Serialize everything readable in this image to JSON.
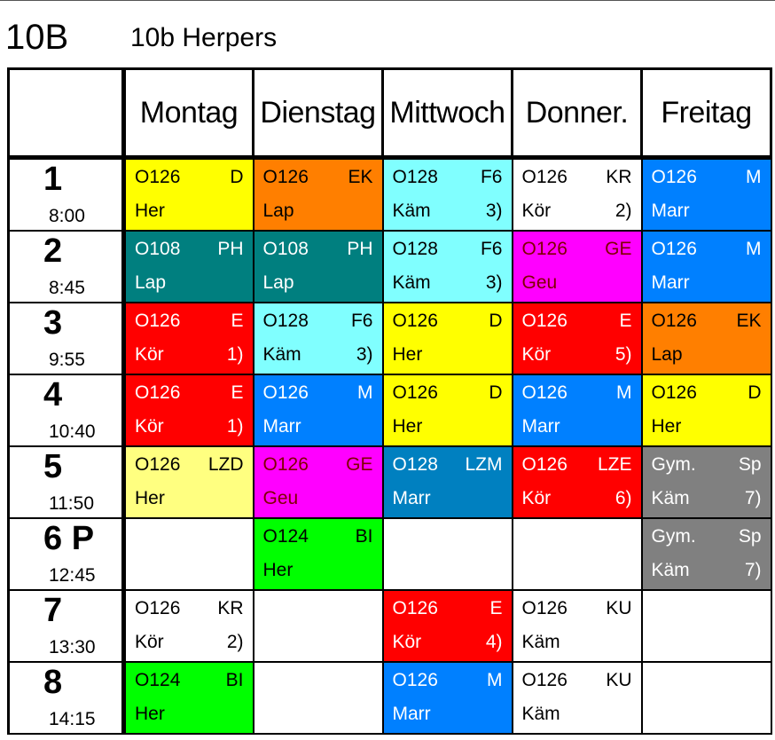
{
  "class_id": "10B",
  "class_name": "10b Herpers",
  "corner": "",
  "days": [
    "Montag",
    "Dienstag",
    "Mittwoch",
    "Donner.",
    "Freitag"
  ],
  "colors": {
    "yellow": "#ffff00",
    "orange": "#ff7f00",
    "cyan": "#80ffff",
    "blue": "#0080ff",
    "teal": "#007f7f",
    "magenta": "#ff00ff",
    "red": "#ff0000",
    "lightyellow": "#ffff80",
    "steelblue": "#0080c0",
    "gray": "#808080",
    "green": "#00ff00",
    "white": "#ffffff"
  },
  "periods": [
    {
      "num": "1",
      "time": "8:00",
      "cells": [
        {
          "room": "O126",
          "subject": "D",
          "teacher": "Her",
          "note": "",
          "color": "#ffff00",
          "text": "#000000"
        },
        {
          "room": "O126",
          "subject": "EK",
          "teacher": "Lap",
          "note": "",
          "color": "#ff7f00",
          "text": "#000000"
        },
        {
          "room": "O128",
          "subject": "F6",
          "teacher": "Käm",
          "note": "3)",
          "color": "#80ffff",
          "text": "#000000"
        },
        {
          "room": "O126",
          "subject": "KR",
          "teacher": "Kör",
          "note": "2)",
          "color": "#ffffff",
          "text": "#000000"
        },
        {
          "room": "O126",
          "subject": "M",
          "teacher": "Marr",
          "note": "",
          "color": "#0080ff",
          "text": "#ffffff"
        }
      ]
    },
    {
      "num": "2",
      "time": "8:45",
      "cells": [
        {
          "room": "O108",
          "subject": "PH",
          "teacher": "Lap",
          "note": "",
          "color": "#007f7f",
          "text": "#ffffff"
        },
        {
          "room": "O108",
          "subject": "PH",
          "teacher": "Lap",
          "note": "",
          "color": "#007f7f",
          "text": "#ffffff"
        },
        {
          "room": "O128",
          "subject": "F6",
          "teacher": "Käm",
          "note": "3)",
          "color": "#80ffff",
          "text": "#000000"
        },
        {
          "room": "O126",
          "subject": "GE",
          "teacher": "Geu",
          "note": "",
          "color": "#ff00ff",
          "text": "#7f0000"
        },
        {
          "room": "O126",
          "subject": "M",
          "teacher": "Marr",
          "note": "",
          "color": "#0080ff",
          "text": "#ffffff"
        }
      ]
    },
    {
      "num": "3",
      "time": "9:55",
      "cells": [
        {
          "room": "O126",
          "subject": "E",
          "teacher": "Kör",
          "note": "1)",
          "color": "#ff0000",
          "text": "#ffffff"
        },
        {
          "room": "O128",
          "subject": "F6",
          "teacher": "Käm",
          "note": "3)",
          "color": "#80ffff",
          "text": "#000000"
        },
        {
          "room": "O126",
          "subject": "D",
          "teacher": "Her",
          "note": "",
          "color": "#ffff00",
          "text": "#000000"
        },
        {
          "room": "O126",
          "subject": "E",
          "teacher": "Kör",
          "note": "5)",
          "color": "#ff0000",
          "text": "#ffffff"
        },
        {
          "room": "O126",
          "subject": "EK",
          "teacher": "Lap",
          "note": "",
          "color": "#ff7f00",
          "text": "#000000"
        }
      ]
    },
    {
      "num": "4",
      "time": "10:40",
      "cells": [
        {
          "room": "O126",
          "subject": "E",
          "teacher": "Kör",
          "note": "1)",
          "color": "#ff0000",
          "text": "#ffffff"
        },
        {
          "room": "O126",
          "subject": "M",
          "teacher": "Marr",
          "note": "",
          "color": "#0080ff",
          "text": "#ffffff"
        },
        {
          "room": "O126",
          "subject": "D",
          "teacher": "Her",
          "note": "",
          "color": "#ffff00",
          "text": "#000000"
        },
        {
          "room": "O126",
          "subject": "M",
          "teacher": "Marr",
          "note": "",
          "color": "#0080ff",
          "text": "#ffffff"
        },
        {
          "room": "O126",
          "subject": "D",
          "teacher": "Her",
          "note": "",
          "color": "#ffff00",
          "text": "#000000"
        }
      ]
    },
    {
      "num": "5",
      "time": "11:50",
      "cells": [
        {
          "room": "O126",
          "subject": "LZD",
          "teacher": "Her",
          "note": "",
          "color": "#ffff80",
          "text": "#000000"
        },
        {
          "room": "O126",
          "subject": "GE",
          "teacher": "Geu",
          "note": "",
          "color": "#ff00ff",
          "text": "#7f0000"
        },
        {
          "room": "O128",
          "subject": "LZM",
          "teacher": "Marr",
          "note": "",
          "color": "#0080c0",
          "text": "#ffffff"
        },
        {
          "room": "O126",
          "subject": "LZE",
          "teacher": "Kör",
          "note": "6)",
          "color": "#ff0000",
          "text": "#ffffff"
        },
        {
          "room": "Gym.",
          "subject": "Sp",
          "teacher": "Käm",
          "note": "7)",
          "color": "#808080",
          "text": "#ffffff"
        }
      ]
    },
    {
      "num": "6 P",
      "time": "12:45",
      "cells": [
        {
          "room": "",
          "subject": "",
          "teacher": "",
          "note": "",
          "color": "#ffffff",
          "text": "#000000"
        },
        {
          "room": "O124",
          "subject": "BI",
          "teacher": "Her",
          "note": "",
          "color": "#00ff00",
          "text": "#000000"
        },
        {
          "room": "",
          "subject": "",
          "teacher": "",
          "note": "",
          "color": "#ffffff",
          "text": "#000000"
        },
        {
          "room": "",
          "subject": "",
          "teacher": "",
          "note": "",
          "color": "#ffffff",
          "text": "#000000"
        },
        {
          "room": "Gym.",
          "subject": "Sp",
          "teacher": "Käm",
          "note": "7)",
          "color": "#808080",
          "text": "#ffffff"
        }
      ]
    },
    {
      "num": "7",
      "time": "13:30",
      "cells": [
        {
          "room": "O126",
          "subject": "KR",
          "teacher": "Kör",
          "note": "2)",
          "color": "#ffffff",
          "text": "#000000"
        },
        {
          "room": "",
          "subject": "",
          "teacher": "",
          "note": "",
          "color": "#ffffff",
          "text": "#000000"
        },
        {
          "room": "O126",
          "subject": "E",
          "teacher": "Kör",
          "note": "4)",
          "color": "#ff0000",
          "text": "#ffffff"
        },
        {
          "room": "O126",
          "subject": "KU",
          "teacher": "Käm",
          "note": "",
          "color": "#ffffff",
          "text": "#000000"
        },
        {
          "room": "",
          "subject": "",
          "teacher": "",
          "note": "",
          "color": "#ffffff",
          "text": "#000000"
        }
      ]
    },
    {
      "num": "8",
      "time": "14:15",
      "cells": [
        {
          "room": "O124",
          "subject": "BI",
          "teacher": "Her",
          "note": "",
          "color": "#00ff00",
          "text": "#000000"
        },
        {
          "room": "",
          "subject": "",
          "teacher": "",
          "note": "",
          "color": "#ffffff",
          "text": "#000000"
        },
        {
          "room": "O126",
          "subject": "M",
          "teacher": "Marr",
          "note": "",
          "color": "#0080ff",
          "text": "#ffffff"
        },
        {
          "room": "O126",
          "subject": "KU",
          "teacher": "Käm",
          "note": "",
          "color": "#ffffff",
          "text": "#000000"
        },
        {
          "room": "",
          "subject": "",
          "teacher": "",
          "note": "",
          "color": "#ffffff",
          "text": "#000000"
        }
      ]
    }
  ]
}
